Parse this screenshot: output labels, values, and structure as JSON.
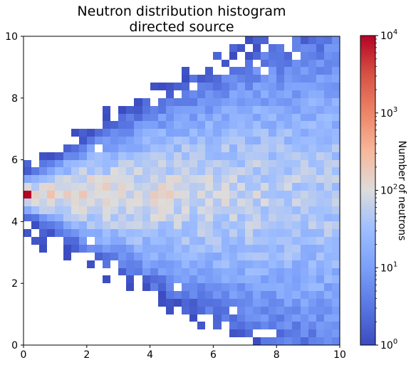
{
  "chart_data": {
    "type": "heatmap",
    "title": "Neutron distribution histogram",
    "subtitle": "directed source",
    "xlabel": "",
    "ylabel": "",
    "xlim": [
      0,
      10
    ],
    "ylim": [
      0,
      10
    ],
    "x_ticks": [
      "0",
      "2",
      "4",
      "6",
      "8",
      "10"
    ],
    "y_ticks": [
      "0",
      "2",
      "4",
      "6",
      "8",
      "10"
    ],
    "bins": {
      "nx": 40,
      "ny": 40,
      "bin_width": 0.25
    },
    "colormap": "coolwarm",
    "color_scale": "log",
    "colorbar": {
      "label": "Number of neutrons",
      "range": [
        1,
        10000
      ],
      "ticks": [
        {
          "base": "10",
          "exp": "0"
        },
        {
          "base": "10",
          "exp": "1"
        },
        {
          "base": "10",
          "exp": "2"
        },
        {
          "base": "10",
          "exp": "3"
        },
        {
          "base": "10",
          "exp": "4"
        }
      ]
    },
    "source": {
      "x": 0.125,
      "y": 4.875,
      "count": 10000
    },
    "beam_axis_y": 4.875,
    "description_of_trend": "counts decrease with distance from beam axis y≈4.9 and with x; beam spreads as x increases",
    "empty_bins_color": "#ffffff"
  }
}
